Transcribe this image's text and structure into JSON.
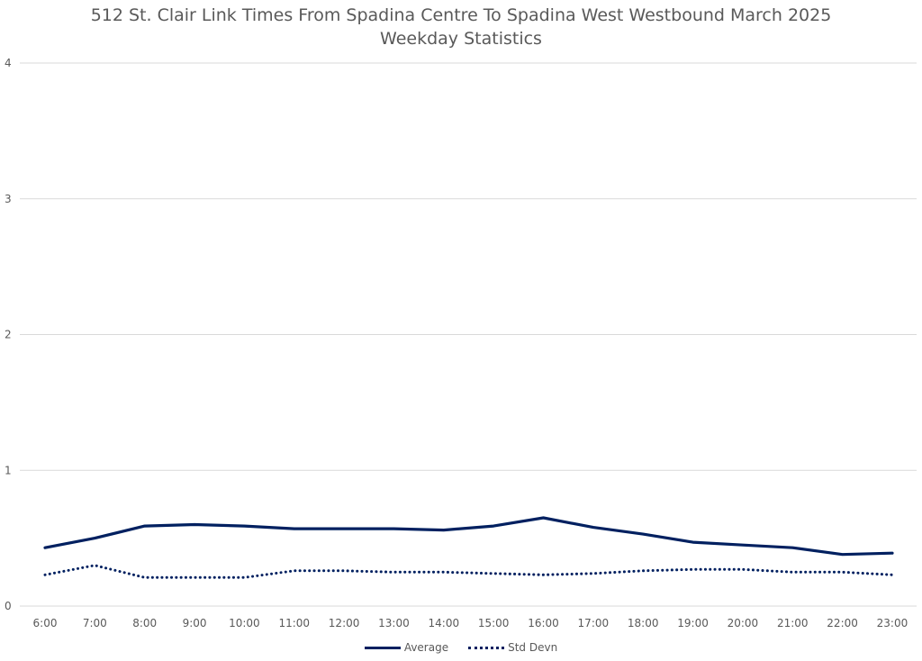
{
  "chart_data": {
    "type": "line",
    "title_lines": [
      "512 St. Clair Link Times From Spadina Centre To Spadina West Westbound March 2025",
      "Weekday Statistics"
    ],
    "categories": [
      "6:00",
      "7:00",
      "8:00",
      "9:00",
      "10:00",
      "11:00",
      "12:00",
      "13:00",
      "14:00",
      "15:00",
      "16:00",
      "17:00",
      "18:00",
      "19:00",
      "20:00",
      "21:00",
      "22:00",
      "23:00"
    ],
    "ylim": [
      0,
      4
    ],
    "yticks": [
      0,
      1,
      2,
      3,
      4
    ],
    "grid": true,
    "legend_placement": "bottom",
    "series": [
      {
        "name": "Average",
        "style": "solid",
        "color": "#002060",
        "values": [
          0.43,
          0.5,
          0.59,
          0.6,
          0.59,
          0.57,
          0.57,
          0.57,
          0.56,
          0.59,
          0.65,
          0.58,
          0.53,
          0.47,
          0.45,
          0.43,
          0.38,
          0.39
        ]
      },
      {
        "name": "Std Devn",
        "style": "dotted",
        "color": "#002060",
        "values": [
          0.23,
          0.3,
          0.21,
          0.21,
          0.21,
          0.26,
          0.26,
          0.25,
          0.25,
          0.24,
          0.23,
          0.24,
          0.26,
          0.27,
          0.27,
          0.25,
          0.25,
          0.23
        ]
      }
    ]
  }
}
